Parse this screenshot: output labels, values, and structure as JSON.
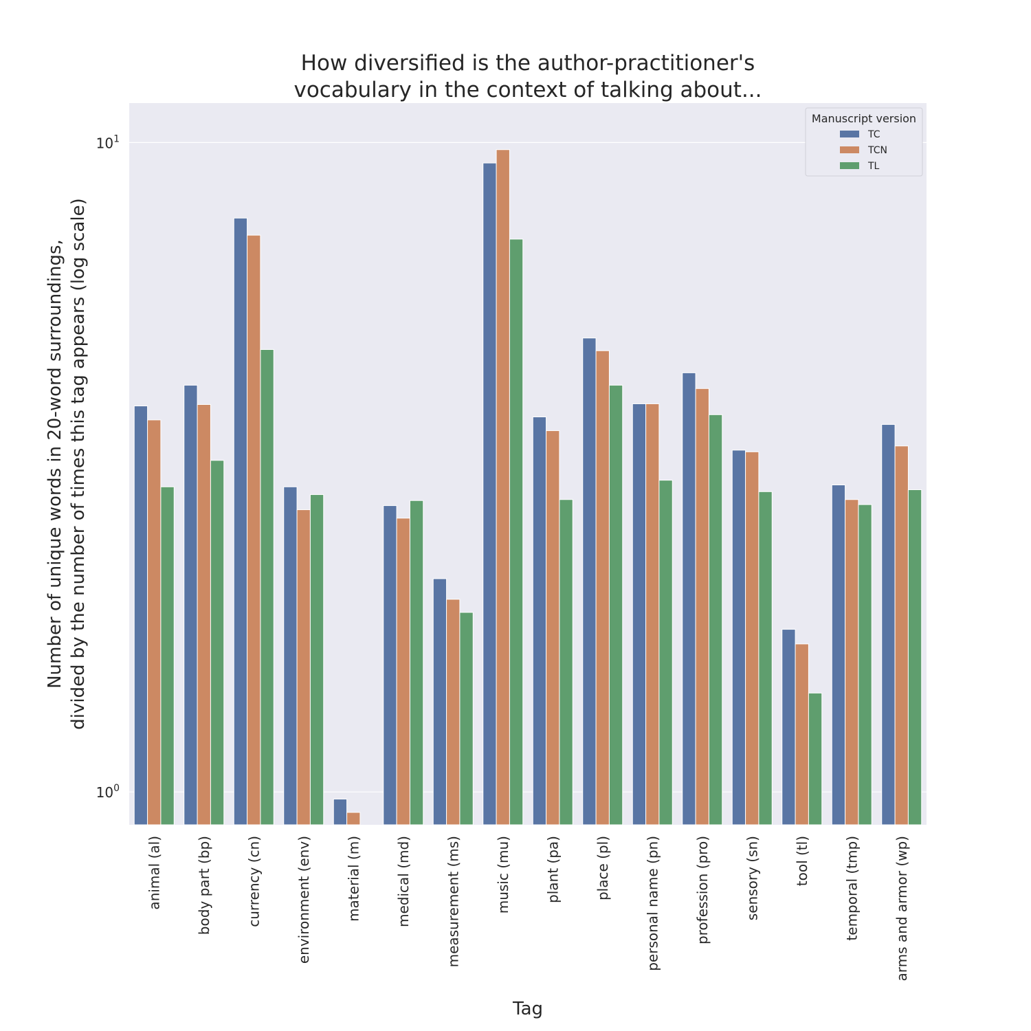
{
  "chart_data": {
    "type": "bar",
    "title": [
      "How diversified is the author-practitioner's",
      "vocabulary in the context of talking about..."
    ],
    "xlabel": "Tag",
    "ylabel": [
      "Number of unique words in 20-word surroundings,",
      "divided by the number of times this tag appears (log scale)"
    ],
    "yscale": "log",
    "ylim": [
      0.89,
      11.5
    ],
    "yticks": [
      {
        "value": 1,
        "base": "10",
        "exp": "0"
      },
      {
        "value": 10,
        "base": "10",
        "exp": "1"
      }
    ],
    "grid": true,
    "legend": {
      "title": "Manuscript version",
      "placement": "top-right"
    },
    "categories": [
      "animal (al)",
      "body part (bp)",
      "currency (cn)",
      "environment (env)",
      "material (m)",
      "medical (md)",
      "measurement (ms)",
      "music (mu)",
      "plant (pa)",
      "place (pl)",
      "personal name (pn)",
      "profession (pro)",
      "sensory (sn)",
      "tool (tl)",
      "temporal (tmp)",
      "arms and armor (wp)"
    ],
    "series": [
      {
        "name": "TC",
        "color": "#5975a4",
        "values": [
          3.93,
          4.23,
          7.65,
          2.95,
          0.975,
          2.76,
          2.13,
          9.3,
          3.78,
          5.0,
          3.96,
          4.42,
          3.36,
          1.78,
          2.97,
          3.68
        ]
      },
      {
        "name": "TCN",
        "color": "#cc8963",
        "values": [
          3.74,
          3.95,
          7.2,
          2.72,
          0.93,
          2.64,
          1.98,
          9.75,
          3.6,
          4.78,
          3.96,
          4.18,
          3.34,
          1.69,
          2.82,
          3.41
        ]
      },
      {
        "name": "TL",
        "color": "#5f9e6e",
        "values": [
          2.95,
          3.24,
          4.8,
          2.87,
          0.865,
          2.81,
          1.89,
          7.1,
          2.82,
          4.23,
          3.02,
          3.81,
          2.9,
          1.42,
          2.77,
          2.92
        ]
      }
    ]
  }
}
